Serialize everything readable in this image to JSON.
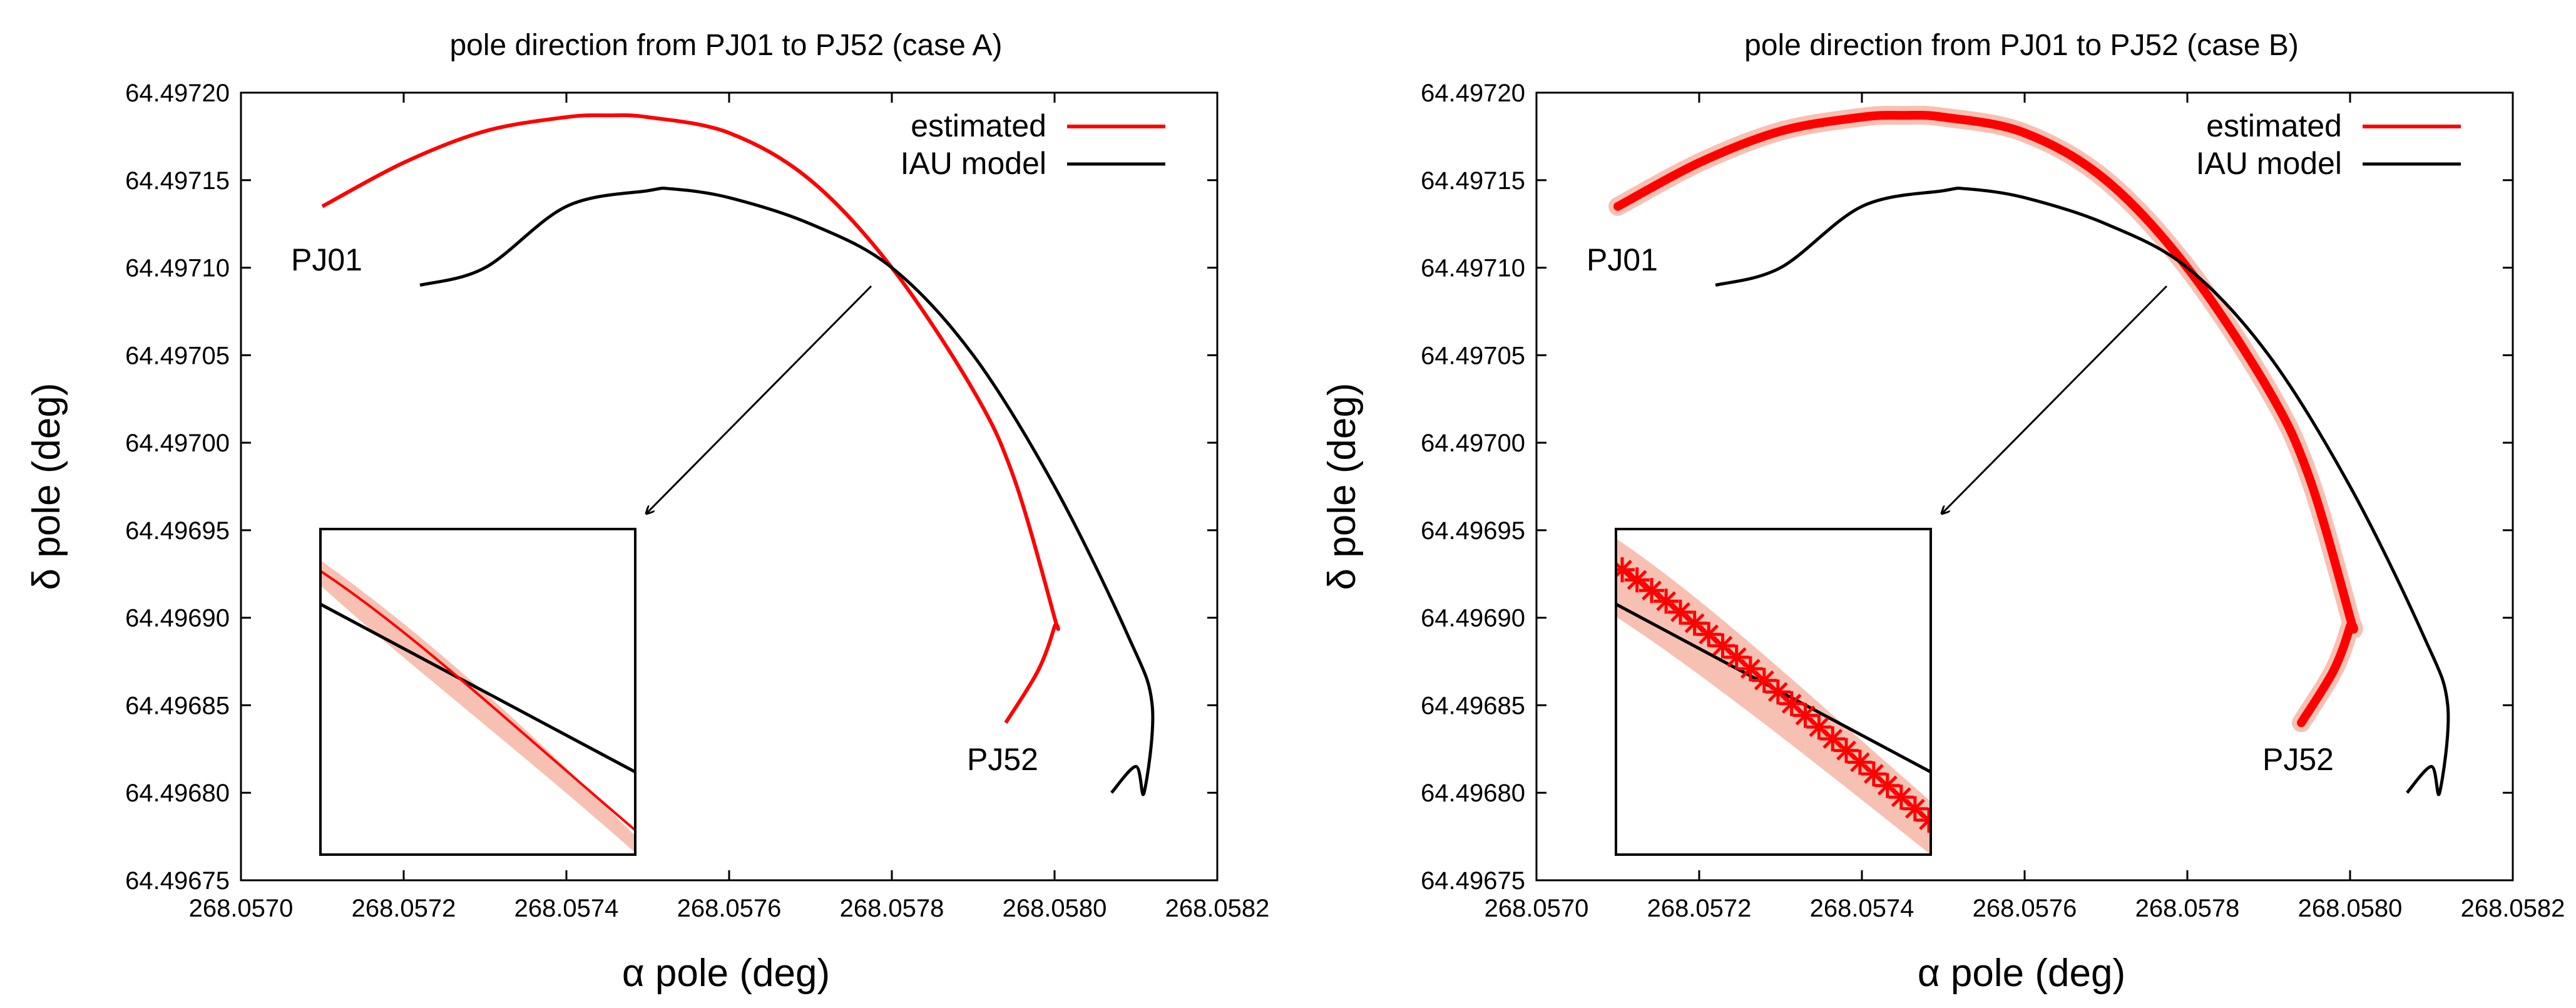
{
  "chart_data": [
    {
      "type": "line",
      "title": "pole direction from PJ01 to PJ52 (case A)",
      "xlabel": "α pole (deg)",
      "ylabel": "δ pole (deg)",
      "xlim": [
        268.057,
        268.0582
      ],
      "ylim": [
        64.49675,
        64.4972
      ],
      "xticks": [
        "268.0570",
        "268.0572",
        "268.0574",
        "268.0576",
        "268.0578",
        "268.0580",
        "268.0582"
      ],
      "yticks": [
        "64.49675",
        "64.49680",
        "64.49685",
        "64.49690",
        "64.49695",
        "64.49700",
        "64.49705",
        "64.49710",
        "64.49715",
        "64.49720"
      ],
      "legend": {
        "position": "top-right",
        "entries": [
          "estimated",
          "IAU model"
        ]
      },
      "annotations": [
        "PJ01",
        "PJ52"
      ],
      "series": [
        {
          "name": "estimated",
          "color": "#ff0000",
          "x": [
            268.0571,
            268.0572,
            268.0573,
            268.0574,
            268.05745,
            268.0575,
            268.0576,
            268.0577,
            268.0578,
            268.0579,
            268.05795,
            268.058,
            268.058,
            268.05798,
            268.05794
          ],
          "y": [
            64.497135,
            64.49716,
            64.497178,
            64.497186,
            64.497187,
            64.497186,
            64.497177,
            64.49715,
            64.4971,
            64.49703,
            64.49698,
            64.4969,
            64.496895,
            64.49687,
            64.49684
          ]
        },
        {
          "name": "IAU model",
          "color": "#000000",
          "x": [
            268.05722,
            268.0573,
            268.0574,
            268.0575,
            268.05753,
            268.0576,
            268.0577,
            268.0578,
            268.0579,
            268.058,
            268.05809,
            268.05812,
            268.05811,
            268.0581,
            268.05807
          ],
          "y": [
            64.49709,
            64.4971,
            64.497135,
            64.497144,
            64.497145,
            64.49714,
            64.497125,
            64.4971,
            64.49705,
            64.496975,
            64.49689,
            64.49685,
            64.4968,
            64.496815,
            64.4968
          ]
        }
      ],
      "inset": {
        "shows": "zoom near crossing",
        "uncertainty_band_color": "#f6c1b3"
      }
    },
    {
      "type": "line",
      "title": "pole direction from PJ01 to PJ52 (case B)",
      "xlabel": "α pole (deg)",
      "ylabel": "δ pole (deg)",
      "xlim": [
        268.057,
        268.0582
      ],
      "ylim": [
        64.49675,
        64.4972
      ],
      "xticks": [
        "268.0570",
        "268.0572",
        "268.0574",
        "268.0576",
        "268.0578",
        "268.0580",
        "268.0582"
      ],
      "yticks": [
        "64.49675",
        "64.49680",
        "64.49685",
        "64.49690",
        "64.49695",
        "64.49700",
        "64.49705",
        "64.49710",
        "64.49715",
        "64.49720"
      ],
      "legend": {
        "position": "top-right",
        "entries": [
          "estimated",
          "IAU model"
        ]
      },
      "annotations": [
        "PJ01",
        "PJ52"
      ],
      "series": [
        {
          "name": "estimated",
          "color": "#ff0000",
          "x": [
            268.0571,
            268.0572,
            268.0573,
            268.0574,
            268.05745,
            268.0575,
            268.0576,
            268.0577,
            268.0578,
            268.0579,
            268.05795,
            268.058,
            268.058,
            268.05798,
            268.05794
          ],
          "y": [
            64.497135,
            64.49716,
            64.497178,
            64.497186,
            64.497187,
            64.497186,
            64.497177,
            64.49715,
            64.4971,
            64.49703,
            64.49698,
            64.4969,
            64.496895,
            64.49687,
            64.49684
          ]
        },
        {
          "name": "IAU model",
          "color": "#000000",
          "x": [
            268.05722,
            268.0573,
            268.0574,
            268.0575,
            268.05753,
            268.0576,
            268.0577,
            268.0578,
            268.0579,
            268.058,
            268.05809,
            268.05812,
            268.05811,
            268.0581,
            268.05807
          ],
          "y": [
            64.49709,
            64.4971,
            64.497135,
            64.497144,
            64.497145,
            64.49714,
            64.497125,
            64.4971,
            64.49705,
            64.496975,
            64.49689,
            64.49685,
            64.4968,
            64.496815,
            64.4968
          ]
        }
      ],
      "inset": {
        "shows": "zoom near crossing, star markers on estimated",
        "uncertainty_band_color": "#f6c1b3"
      }
    }
  ]
}
